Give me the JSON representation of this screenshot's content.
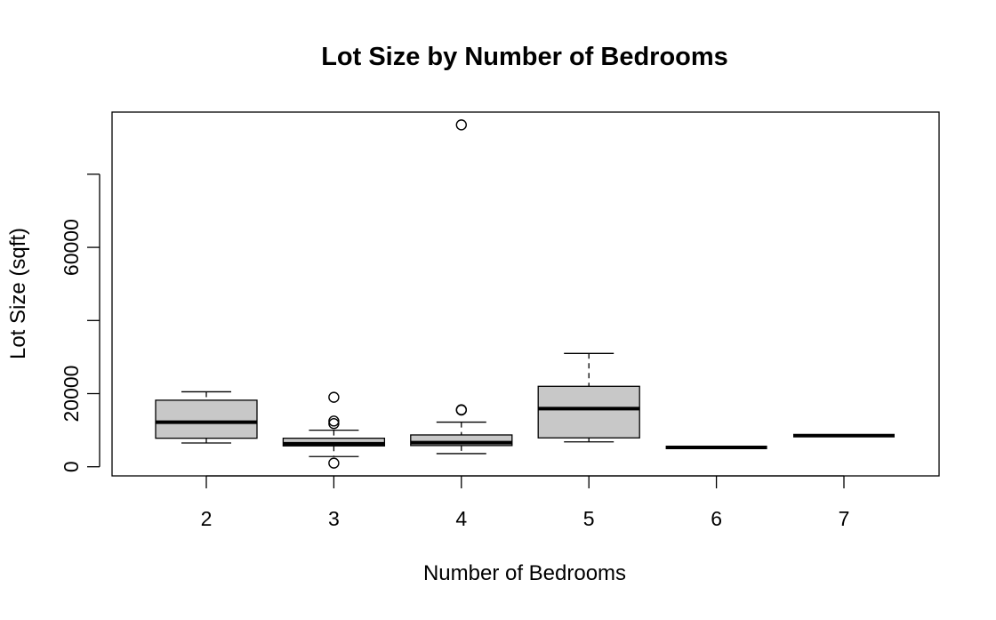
{
  "chart_data": {
    "type": "boxplot",
    "title": "Lot Size by Number of Bedrooms",
    "xlabel": "Number of Bedrooms",
    "ylabel": "Lot Size (sqft)",
    "ylim": [
      -2500,
      97000
    ],
    "yticks": [
      0,
      20000,
      40000,
      60000,
      80000
    ],
    "ytick_labels": [
      "0",
      "20000",
      "",
      "60000",
      ""
    ],
    "grid": false,
    "box_fill": "#c8c8c8",
    "line_color": "#000000",
    "categories": [
      "2",
      "3",
      "4",
      "5",
      "6",
      "7"
    ],
    "boxes": [
      {
        "category": "2",
        "whisker_low": 6500,
        "q1": 7800,
        "median": 12200,
        "q3": 18200,
        "whisker_high": 20500,
        "outliers": []
      },
      {
        "category": "3",
        "whisker_low": 2800,
        "q1": 5700,
        "median": 6300,
        "q3": 7800,
        "whisker_high": 10000,
        "outliers": [
          1000,
          11800,
          12500,
          19000
        ]
      },
      {
        "category": "4",
        "whisker_low": 3600,
        "q1": 5800,
        "median": 6600,
        "q3": 8700,
        "whisker_high": 12200,
        "outliers": [
          15500,
          15600,
          93500
        ]
      },
      {
        "category": "5",
        "whisker_low": 6800,
        "q1": 7900,
        "median": 15900,
        "q3": 22000,
        "whisker_high": 31000,
        "outliers": []
      },
      {
        "category": "6",
        "whisker_low": 5300,
        "q1": 5300,
        "median": 5300,
        "q3": 5300,
        "whisker_high": 5300,
        "outliers": []
      },
      {
        "category": "7",
        "whisker_low": 8500,
        "q1": 8500,
        "median": 8500,
        "q3": 8500,
        "whisker_high": 8500,
        "outliers": []
      }
    ]
  }
}
